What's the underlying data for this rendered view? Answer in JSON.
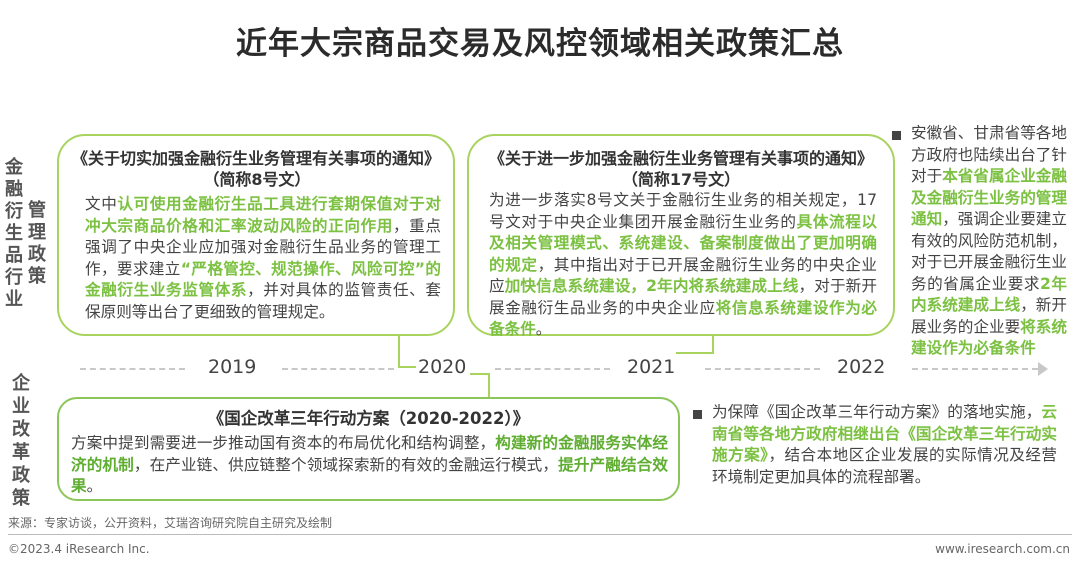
{
  "title": "近年大宗商品交易及风控领域相关政策汇总",
  "labels": {
    "industry": "金融衍生品行业",
    "mgmt_policy": "管理政策",
    "enterprise_reform": "企业改革政策"
  },
  "timeline": {
    "years": [
      "2019",
      "2020",
      "2021",
      "2022"
    ]
  },
  "box1": {
    "title": "《关于切实加强金融衍生业务管理有关事项的通知》",
    "subtitle": "（简称8号文）",
    "segments": [
      {
        "t": "文中",
        "hl": false
      },
      {
        "t": "认可使用金融衍生品工具进行套期保值对于对冲大宗商品价格和汇率波动风险的正向作用",
        "hl": true
      },
      {
        "t": "，重点强调了中央企业应加强对金融衍生品业务的管理工作，要求建立",
        "hl": false
      },
      {
        "t": "“严格管控、规范操作、风险可控”的金融衍生业务监管体系",
        "hl": true
      },
      {
        "t": "，并对具体的监管责任、套保原则等出台了更细致的管理规定。",
        "hl": false
      }
    ]
  },
  "box2": {
    "title": "《关于进一步加强金融衍生业务管理有关事项的通知》",
    "subtitle": "（简称17号文）",
    "segments": [
      {
        "t": "为进一步落实8号文关于金融衍生业务的相关规定，17号文对于中央企业集团开展金融衍生业务的",
        "hl": false
      },
      {
        "t": "具体流程以及相关管理模式、系统建设、备案制度做出了更加明确的规定",
        "hl": true
      },
      {
        "t": "，其中指出对于已开展金融衍生业务的中央企业应",
        "hl": false
      },
      {
        "t": "加快信息系统建设，2年内将系统建成上线",
        "hl": true
      },
      {
        "t": "，对于新开展金融衍生品业务的中央企业应",
        "hl": false
      },
      {
        "t": "将信息系统建设作为必备条件",
        "hl": true
      },
      {
        "t": "。",
        "hl": false
      }
    ]
  },
  "side1": {
    "segments": [
      {
        "t": "安徽省、甘肃省等各地方政府也陆续出台了针对于",
        "hl": false
      },
      {
        "t": "本省省属企业金融及金融衍生业务的管理通知",
        "hl": true
      },
      {
        "t": "，强调企业要建立有效的风险防范机制，对于已开展金融衍生业务的省属企业要求",
        "hl": false
      },
      {
        "t": "2年内系统建成上线",
        "hl": true
      },
      {
        "t": "，新开展业务的企业要",
        "hl": false
      },
      {
        "t": "将系统建设作为必备条件",
        "hl": true
      }
    ]
  },
  "box3": {
    "title": "《国企改革三年行动方案（2020-2022）》",
    "segments": [
      {
        "t": "方案中提到需要进一步推动国有资本的布局优化和结构调整，",
        "hl": false
      },
      {
        "t": "构建新的金融服务实体经济的机制",
        "hl": true
      },
      {
        "t": "，在产业链、供应链整个领域探索新的有效的金融运行模式，",
        "hl": false
      },
      {
        "t": "提升产融结合效果",
        "hl": true
      },
      {
        "t": "。",
        "hl": false
      }
    ]
  },
  "side2": {
    "segments": [
      {
        "t": "为保障《国企改革三年行动方案》的落地实施，",
        "hl": false
      },
      {
        "t": "云南省等各地方政府相继出台《国企改革三年行动实施方案》",
        "hl": true
      },
      {
        "t": "，结合本地区企业发展的实际情况及经营环境制定更加具体的流程部署。",
        "hl": false
      }
    ]
  },
  "source": "来源：专家访谈，公开资料，艾瑞咨询研究院自主研究及绘制",
  "footer": {
    "copyright": "©2023.4 iResearch Inc.",
    "website": "www.iresearch.com.cn"
  },
  "colors": {
    "highlight": "#7cc142",
    "box_border": "#a9d35f",
    "text": "#444444"
  }
}
